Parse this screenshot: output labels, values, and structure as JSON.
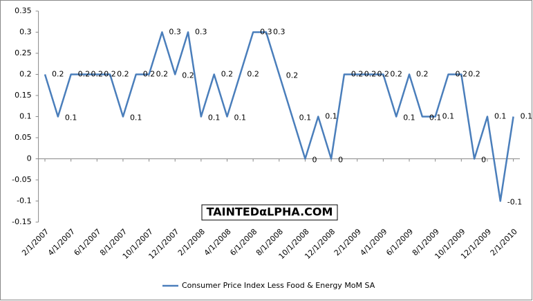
{
  "chart_data": {
    "type": "line",
    "categories": [
      "2/1/2007",
      null,
      "4/1/2007",
      null,
      "6/1/2007",
      null,
      "8/1/2007",
      null,
      "10/1/2007",
      null,
      "12/1/2007",
      null,
      "2/1/2008",
      null,
      "4/1/2008",
      null,
      "6/1/2008",
      null,
      "8/1/2008",
      null,
      "10/1/2008",
      null,
      "12/1/2008",
      null,
      "2/1/2009",
      null,
      "4/1/2009",
      null,
      "6/1/2009",
      null,
      "8/1/2009",
      null,
      "10/1/2009",
      null,
      "12/1/2009",
      null,
      "2/1/2010"
    ],
    "series": [
      {
        "name": "Consumer Price Index Less Food & Energy MoM SA",
        "color": "#4a7ebb",
        "values": [
          0.2,
          0.1,
          0.2,
          0.2,
          0.2,
          0.2,
          0.1,
          0.2,
          0.2,
          0.3,
          0.2,
          0.3,
          0.1,
          0.2,
          0.1,
          0.2,
          0.3,
          0.3,
          0.2,
          0.1,
          0,
          0.1,
          0,
          0.2,
          0.2,
          0.2,
          0.2,
          0.1,
          0.2,
          0.1,
          0.1,
          0.2,
          0.2,
          0,
          0.1,
          -0.1,
          0.1
        ]
      }
    ],
    "ylim": [
      -0.15,
      0.35
    ],
    "yticks": [
      -0.15,
      -0.1,
      -0.05,
      0,
      0.05,
      0.1,
      0.15,
      0.2,
      0.25,
      0.3,
      0.35
    ],
    "grid": false,
    "legend": "bottom",
    "watermark": "TAINTEDαLPHA.COM"
  }
}
